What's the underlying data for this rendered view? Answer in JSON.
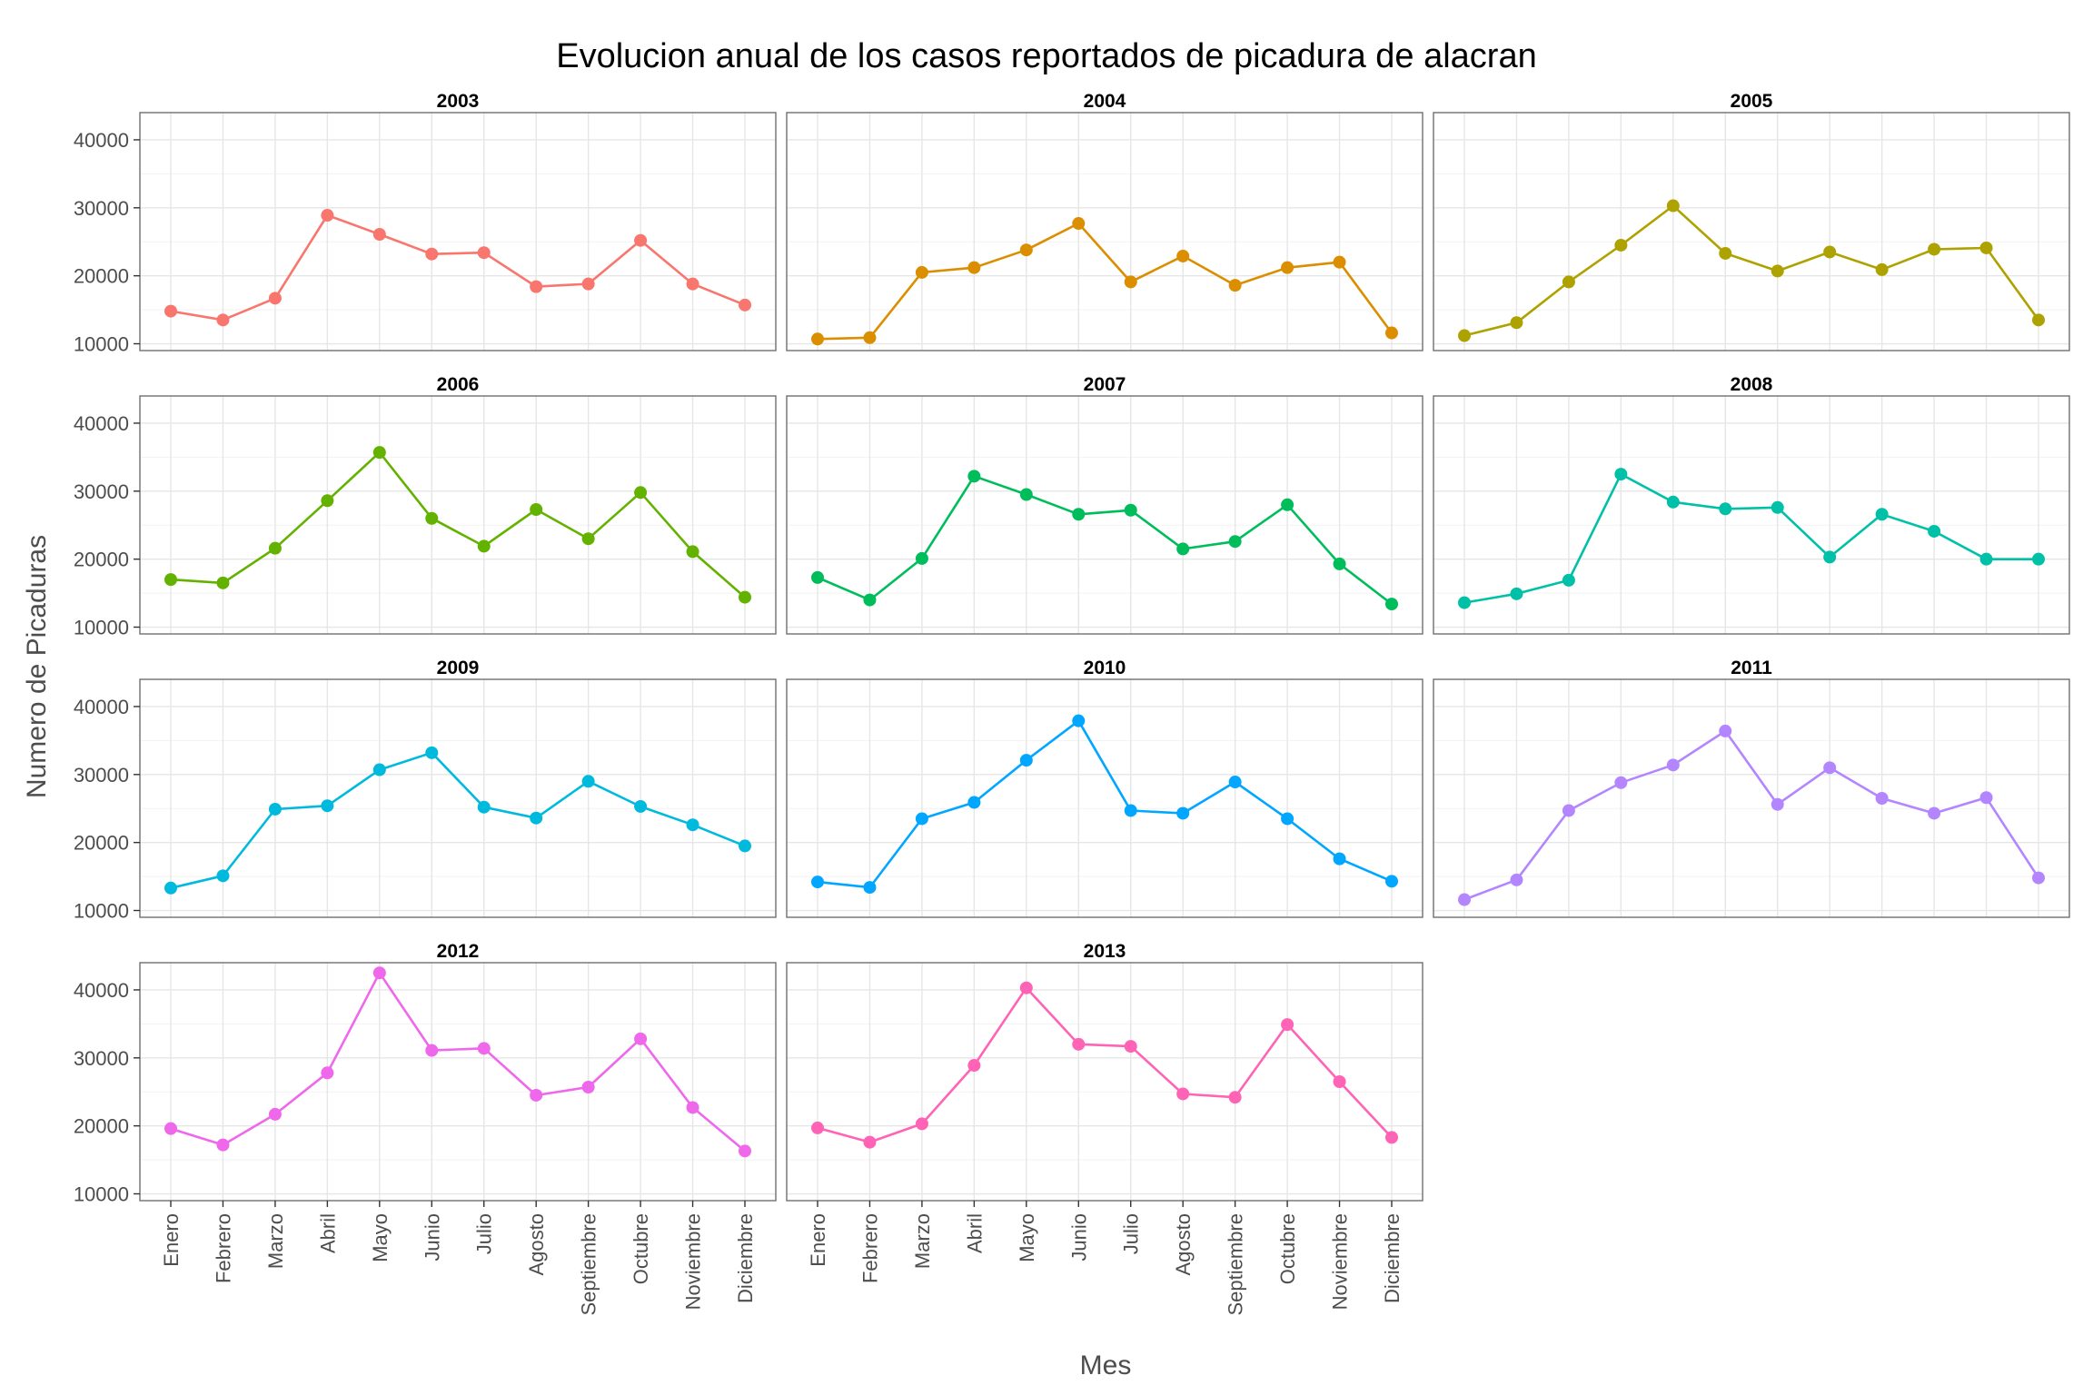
{
  "chart_data": {
    "type": "line",
    "title": "Evolucion anual de los casos reportados de picadura de alacran",
    "xlabel": "Mes",
    "ylabel": "Numero de Picaduras",
    "categories": [
      "Enero",
      "Febrero",
      "Marzo",
      "Abril",
      "Mayo",
      "Junio",
      "Julio",
      "Agosto",
      "Septiembre",
      "Octubre",
      "Noviembre",
      "Diciembre"
    ],
    "yticks": [
      "10000",
      "20000",
      "30000",
      "40000"
    ],
    "ylim": [
      9000,
      44000
    ],
    "grid": true,
    "legend": "none",
    "series": [
      {
        "name": "2003",
        "color": "#F8766D",
        "values": [
          14800,
          13500,
          16700,
          28900,
          26100,
          23200,
          23400,
          18400,
          18800,
          25200,
          18800,
          15700
        ]
      },
      {
        "name": "2004",
        "color": "#DB8E00",
        "values": [
          10700,
          10900,
          20500,
          21200,
          23800,
          27700,
          19100,
          22900,
          18600,
          21200,
          22000,
          11600
        ]
      },
      {
        "name": "2005",
        "color": "#AEA200",
        "values": [
          11200,
          13100,
          19100,
          24500,
          30300,
          23300,
          20700,
          23500,
          20900,
          23900,
          24100,
          13500
        ]
      },
      {
        "name": "2006",
        "color": "#64B200",
        "values": [
          17000,
          16500,
          21600,
          28600,
          35700,
          26000,
          21900,
          27300,
          23000,
          29800,
          21100,
          14400
        ]
      },
      {
        "name": "2007",
        "color": "#00BD5C",
        "values": [
          17300,
          14000,
          20100,
          32200,
          29500,
          26600,
          27200,
          21500,
          22600,
          28000,
          19300,
          13400
        ]
      },
      {
        "name": "2008",
        "color": "#00C1A7",
        "values": [
          13600,
          14900,
          16900,
          32500,
          28400,
          27400,
          27600,
          20300,
          26600,
          24100,
          20000,
          20000
        ]
      },
      {
        "name": "2009",
        "color": "#00BADE",
        "values": [
          13300,
          15100,
          24900,
          25400,
          30700,
          33200,
          25200,
          23600,
          29000,
          25300,
          22600,
          19500
        ]
      },
      {
        "name": "2010",
        "color": "#00A6FF",
        "values": [
          14200,
          13400,
          23500,
          25900,
          32100,
          37900,
          24700,
          24300,
          28900,
          23500,
          17600,
          14300
        ]
      },
      {
        "name": "2011",
        "color": "#B385FF",
        "values": [
          11600,
          14500,
          24700,
          28800,
          31400,
          36400,
          25600,
          31000,
          26500,
          24300,
          26600,
          14800
        ]
      },
      {
        "name": "2012",
        "color": "#EF67EB",
        "values": [
          19600,
          17200,
          21700,
          27800,
          42500,
          31100,
          31400,
          24500,
          25700,
          32800,
          22700,
          16300
        ]
      },
      {
        "name": "2013",
        "color": "#FF63B6",
        "values": [
          19700,
          17600,
          20300,
          28900,
          40300,
          32000,
          31700,
          24700,
          24200,
          34900,
          26500,
          18300
        ]
      }
    ]
  }
}
